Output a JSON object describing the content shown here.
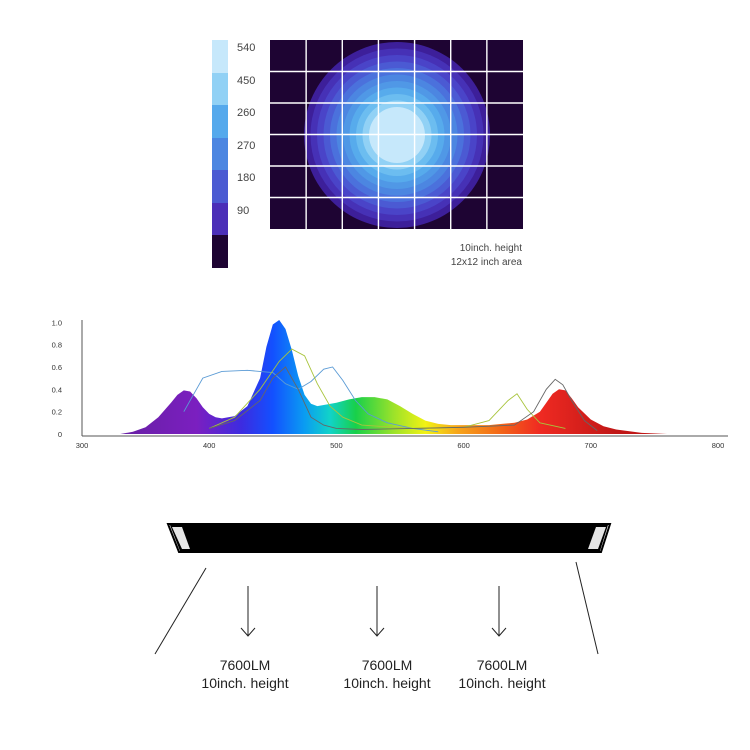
{
  "colors": {
    "map_background": "#1e0433",
    "grid": "#ffffff",
    "fixture": "#000000"
  },
  "irradiance_map": {
    "legend": [
      {
        "label": "540",
        "color": "#c6e8fb"
      },
      {
        "label": "450",
        "color": "#91d1f5"
      },
      {
        "label": "260",
        "color": "#55a9ec"
      },
      {
        "label": "270",
        "color": "#4c86e1"
      },
      {
        "label": "180",
        "color": "#4b5bd2"
      },
      {
        "label": "90",
        "color": "#4b2fb8"
      },
      {
        "label": "",
        "color": "#1e0433"
      }
    ],
    "caption_line1": "10inch. height",
    "caption_line2": "12x12 inch area",
    "ring_colors": [
      "#3d1f9a",
      "#4631b6",
      "#4a44c8",
      "#4b5ad3",
      "#4b71dc",
      "#4c86e1",
      "#5098e6",
      "#57abec",
      "#6cbdf0",
      "#91d1f5",
      "#c6e8fb"
    ]
  },
  "chart_data": {
    "type": "area",
    "xlim": [
      300,
      800
    ],
    "ylim": [
      0,
      1.0
    ],
    "x_ticks": [
      "300",
      "400",
      "500",
      "600",
      "700",
      "800"
    ],
    "y_ticks": [
      "0",
      "0.2",
      "0.4",
      "0.6",
      "0.8",
      "1.0"
    ],
    "spectrum": {
      "x": [
        330,
        340,
        350,
        360,
        370,
        375,
        380,
        385,
        390,
        395,
        400,
        405,
        410,
        420,
        430,
        440,
        445,
        450,
        455,
        460,
        465,
        470,
        475,
        480,
        485,
        490,
        500,
        510,
        520,
        530,
        540,
        550,
        560,
        570,
        580,
        590,
        600,
        610,
        620,
        630,
        640,
        650,
        660,
        665,
        670,
        675,
        680,
        685,
        690,
        700,
        710,
        720,
        740,
        760
      ],
      "y": [
        0.0,
        0.02,
        0.06,
        0.15,
        0.28,
        0.35,
        0.39,
        0.38,
        0.32,
        0.24,
        0.18,
        0.15,
        0.14,
        0.16,
        0.25,
        0.5,
        0.78,
        0.98,
        1.02,
        0.94,
        0.75,
        0.52,
        0.35,
        0.27,
        0.25,
        0.26,
        0.28,
        0.31,
        0.33,
        0.33,
        0.31,
        0.25,
        0.18,
        0.12,
        0.09,
        0.08,
        0.08,
        0.08,
        0.08,
        0.09,
        0.1,
        0.13,
        0.2,
        0.28,
        0.36,
        0.4,
        0.39,
        0.32,
        0.24,
        0.13,
        0.07,
        0.04,
        0.01,
        0.0
      ]
    },
    "reference_curves": [
      {
        "color": "#5b9bd5",
        "x": [
          380,
          395,
          410,
          430,
          450,
          460,
          470,
          480,
          490,
          497,
          505,
          515,
          525,
          540,
          560,
          580
        ],
        "y": [
          0.2,
          0.5,
          0.56,
          0.57,
          0.55,
          0.45,
          0.4,
          0.47,
          0.58,
          0.6,
          0.48,
          0.3,
          0.18,
          0.1,
          0.05,
          0.02
        ]
      },
      {
        "color": "#a8c43c",
        "x": [
          400,
          420,
          440,
          455,
          465,
          475,
          485,
          495,
          505,
          520,
          560,
          600,
          620,
          635,
          642,
          650,
          660,
          680
        ],
        "y": [
          0.05,
          0.15,
          0.4,
          0.65,
          0.76,
          0.7,
          0.45,
          0.25,
          0.15,
          0.08,
          0.05,
          0.06,
          0.12,
          0.3,
          0.36,
          0.22,
          0.1,
          0.05
        ]
      },
      {
        "color": "#666666",
        "x": [
          400,
          420,
          440,
          450,
          460,
          470,
          480,
          490,
          500,
          520,
          560,
          600,
          640,
          655,
          665,
          672,
          678,
          685,
          695,
          705
        ],
        "y": [
          0.05,
          0.12,
          0.3,
          0.5,
          0.6,
          0.4,
          0.15,
          0.08,
          0.05,
          0.04,
          0.05,
          0.06,
          0.08,
          0.2,
          0.4,
          0.49,
          0.44,
          0.3,
          0.12,
          0.03
        ]
      }
    ]
  },
  "outputs": [
    {
      "lumens": "7600LM",
      "height": "10inch. height"
    },
    {
      "lumens": "7600LM",
      "height": "10inch. height"
    },
    {
      "lumens": "7600LM",
      "height": "10inch. height"
    }
  ]
}
